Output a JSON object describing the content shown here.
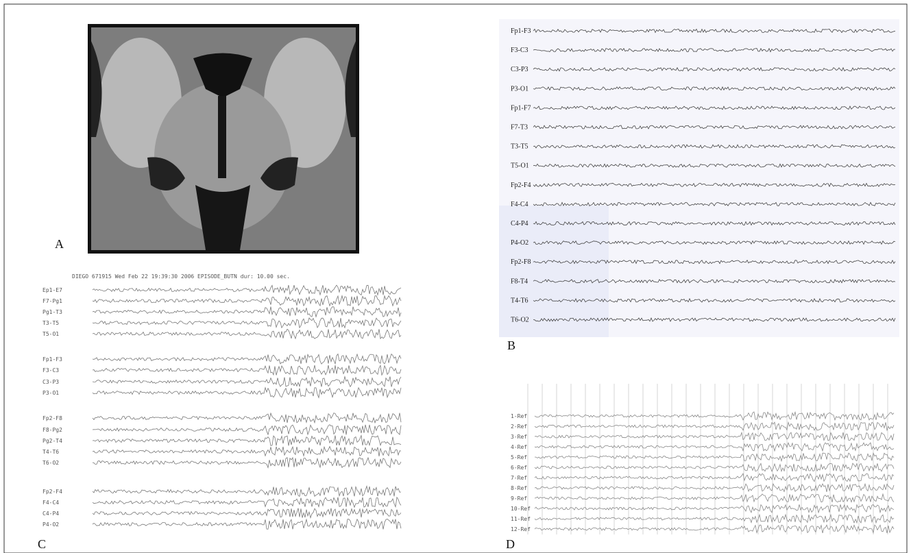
{
  "panels": [
    {
      "label": "A"
    },
    {
      "label": "B",
      "channels": [
        "Fp1-F3",
        "F3-C3",
        "C3-P3",
        "P3-O1",
        "Fp1-F7",
        "F7-T3",
        "T3-T5",
        "T5-O1",
        "Fp2-F4",
        "F4-C4",
        "C4-P4",
        "P4-O2",
        "Fp2-F8",
        "F8-T4",
        "T4-T6",
        "T6-O2"
      ]
    },
    {
      "label": "C",
      "header": "DIEGO 671915 Wed Feb 22 19:39:30 2006 EPISODE_BUTN  dur: 10.00 sec.",
      "channels": [
        "Ep1-E7",
        "F7-Pg1",
        "Pg1-T3",
        "T3-T5",
        "T5-O1",
        "Fp1-F3",
        "F3-C3",
        "C3-P3",
        "P3-O1",
        "Fp2-F8",
        "F8-Pg2",
        "Pg2-T4",
        "T4-T6",
        "T6-O2",
        "Fp2-F4",
        "F4-C4",
        "C4-P4",
        "P4-O2"
      ]
    },
    {
      "label": "D",
      "channels": [
        "1-Ref",
        "2-Ref",
        "3-Ref",
        "4-Ref",
        "5-Ref",
        "6-Ref",
        "7-Ref",
        "8-Ref",
        "9-Ref",
        "10-Ref",
        "11-Ref",
        "12-Ref"
      ]
    }
  ]
}
